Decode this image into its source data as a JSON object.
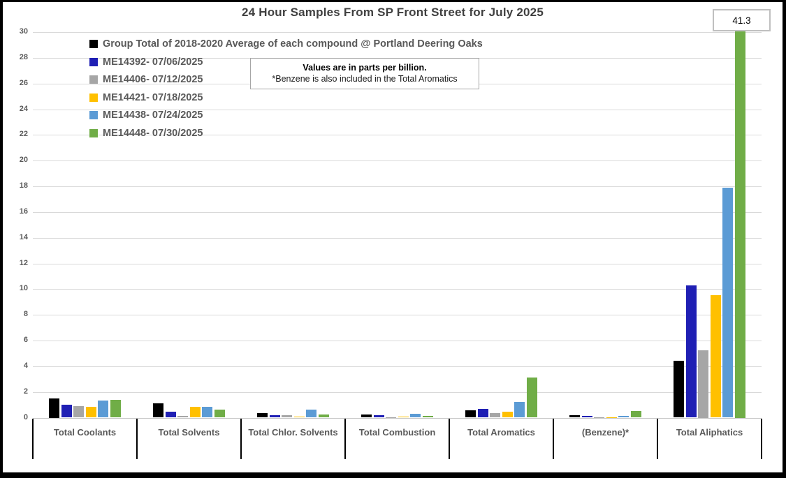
{
  "window": {
    "background": "#FFFFFF",
    "border_color": "#000000",
    "bottom_strip_color": "#BDD7EE"
  },
  "chart_data": {
    "type": "bar",
    "title": "24 Hour Samples From SP Front Street for July 2025",
    "note": {
      "line1": "Values are in parts per billion.",
      "line2": "*Benzene is also included in the Total Aromatics"
    },
    "categories": [
      "Total Coolants",
      "Total Solvents",
      "Total Chlor. Solvents",
      "Total Combustion",
      "Total Aromatics",
      "(Benzene)*",
      "Total Aliphatics"
    ],
    "series": [
      {
        "name": "Group Total of 2018-2020 Average of each compound @ Portland Deering Oaks",
        "color": "#000000",
        "values": [
          1.5,
          1.1,
          0.35,
          0.25,
          0.55,
          0.2,
          4.45
        ]
      },
      {
        "name": "ME14392- 07/06/2025",
        "color": "#1F1FB4",
        "values": [
          1.0,
          0.45,
          0.2,
          0.2,
          0.7,
          0.15,
          10.3
        ]
      },
      {
        "name": "ME14406- 07/12/2025",
        "color": "#A6A6A6",
        "values": [
          0.9,
          0.15,
          0.2,
          0.05,
          0.35,
          0.03,
          5.25
        ]
      },
      {
        "name": "ME14421- 07/18/2025",
        "color": "#FFC000",
        "values": [
          0.85,
          0.85,
          0.1,
          0.1,
          0.45,
          0.05,
          9.55
        ]
      },
      {
        "name": "ME14438- 07/24/2025",
        "color": "#5B9BD5",
        "values": [
          1.35,
          0.85,
          0.6,
          0.3,
          1.2,
          0.12,
          17.9
        ]
      },
      {
        "name": "ME14448- 07/30/2025",
        "color": "#70AD47",
        "values": [
          1.4,
          0.65,
          0.25,
          0.15,
          3.1,
          0.5,
          41.3
        ]
      }
    ],
    "ylim": [
      0,
      30
    ],
    "ytick_step": 2,
    "grid": true,
    "legend_position": "top-left",
    "clipped_bar_label": {
      "value": "41.3",
      "series_index": 5,
      "category_index": 6
    },
    "colors": {
      "gridline": "#D9D9D9",
      "axis_line": "#C6C6C6",
      "axis_text": "#595959",
      "title_text": "#3F3F3F",
      "category_tick": "#000000"
    }
  }
}
